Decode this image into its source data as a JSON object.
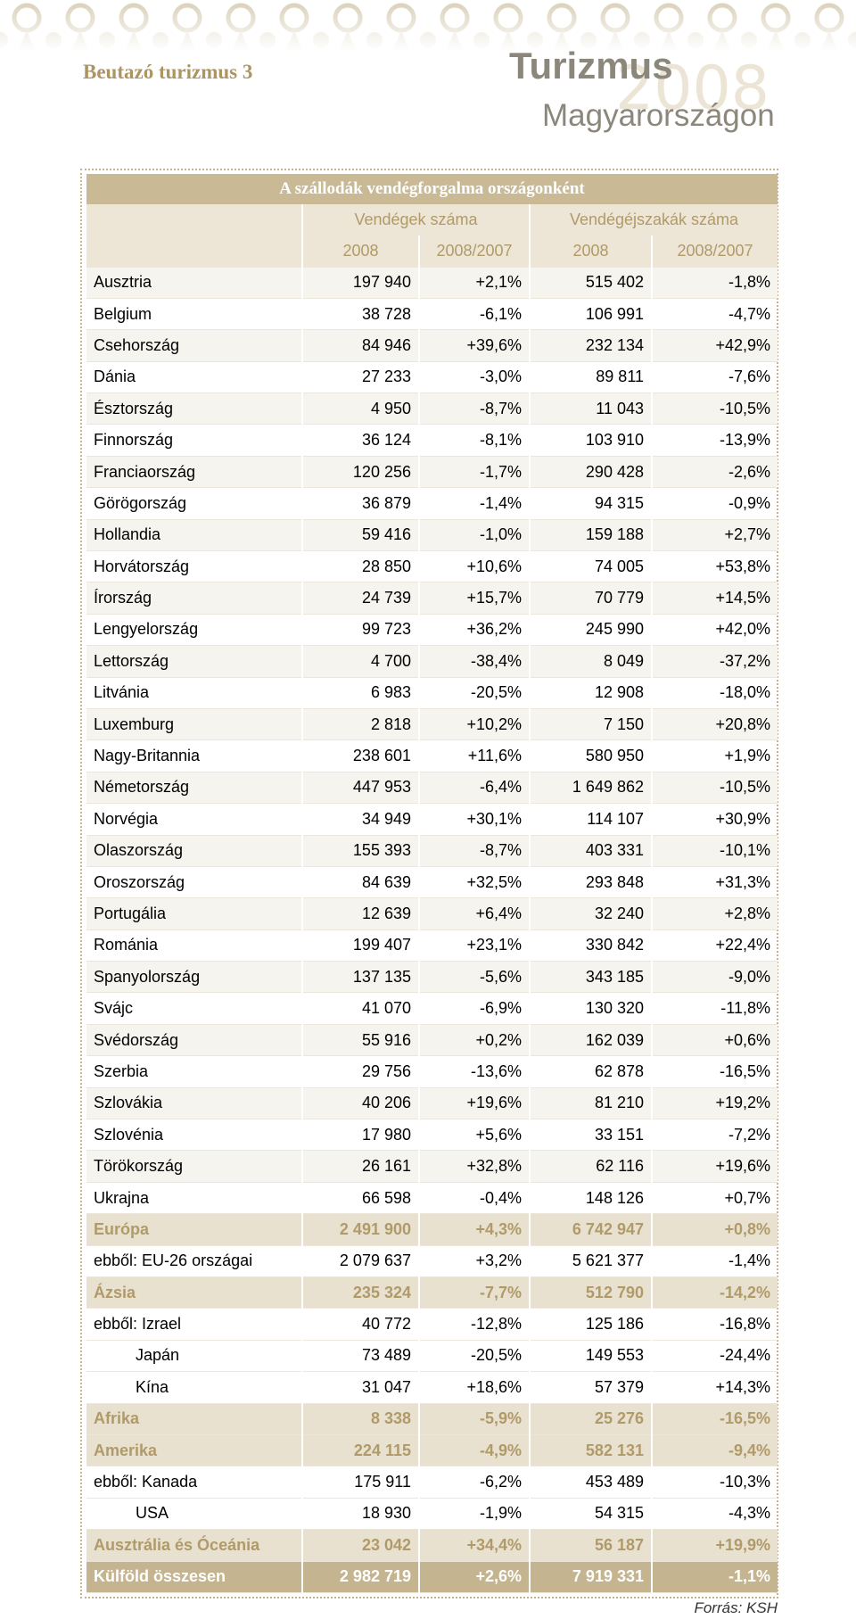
{
  "header": {
    "section": "Beutazó turizmus 3",
    "title": "Turizmus",
    "subtitle": "Magyarországon",
    "year": "2008"
  },
  "table": {
    "title": "A szállodák vendégforgalma országonként",
    "group_headers": [
      "Vendégek száma",
      "Vendégéjszakák száma"
    ],
    "year_headers": [
      "2008",
      "2008/2007",
      "2008",
      "2008/2007"
    ],
    "countries": [
      [
        "Ausztria",
        "197 940",
        "+2,1%",
        "515 402",
        "-1,8%"
      ],
      [
        "Belgium",
        "38 728",
        "-6,1%",
        "106 991",
        "-4,7%"
      ],
      [
        "Csehország",
        "84 946",
        "+39,6%",
        "232 134",
        "+42,9%"
      ],
      [
        "Dánia",
        "27 233",
        "-3,0%",
        "89 811",
        "-7,6%"
      ],
      [
        "Észtország",
        "4 950",
        "-8,7%",
        "11 043",
        "-10,5%"
      ],
      [
        "Finnország",
        "36 124",
        "-8,1%",
        "103 910",
        "-13,9%"
      ],
      [
        "Franciaország",
        "120 256",
        "-1,7%",
        "290 428",
        "-2,6%"
      ],
      [
        "Görögország",
        "36 879",
        "-1,4%",
        "94 315",
        "-0,9%"
      ],
      [
        "Hollandia",
        "59 416",
        "-1,0%",
        "159 188",
        "+2,7%"
      ],
      [
        "Horvátország",
        "28 850",
        "+10,6%",
        "74 005",
        "+53,8%"
      ],
      [
        "Írország",
        "24 739",
        "+15,7%",
        "70 779",
        "+14,5%"
      ],
      [
        "Lengyelország",
        "99 723",
        "+36,2%",
        "245 990",
        "+42,0%"
      ],
      [
        "Lettország",
        "4 700",
        "-38,4%",
        "8 049",
        "-37,2%"
      ],
      [
        "Litvánia",
        "6 983",
        "-20,5%",
        "12 908",
        "-18,0%"
      ],
      [
        "Luxemburg",
        "2 818",
        "+10,2%",
        "7 150",
        "+20,8%"
      ],
      [
        "Nagy-Britannia",
        "238 601",
        "+11,6%",
        "580 950",
        "+1,9%"
      ],
      [
        "Németország",
        "447 953",
        "-6,4%",
        "1 649 862",
        "-10,5%"
      ],
      [
        "Norvégia",
        "34 949",
        "+30,1%",
        "114 107",
        "+30,9%"
      ],
      [
        "Olaszország",
        "155 393",
        "-8,7%",
        "403 331",
        "-10,1%"
      ],
      [
        "Oroszország",
        "84 639",
        "+32,5%",
        "293 848",
        "+31,3%"
      ],
      [
        "Portugália",
        "12 639",
        "+6,4%",
        "32 240",
        "+2,8%"
      ],
      [
        "Románia",
        "199 407",
        "+23,1%",
        "330 842",
        "+22,4%"
      ],
      [
        "Spanyolország",
        "137 135",
        "-5,6%",
        "343 185",
        "-9,0%"
      ],
      [
        "Svájc",
        "41 070",
        "-6,9%",
        "130 320",
        "-11,8%"
      ],
      [
        "Svédország",
        "55 916",
        "+0,2%",
        "162 039",
        "+0,6%"
      ],
      [
        "Szerbia",
        "29 756",
        "-13,6%",
        "62 878",
        "-16,5%"
      ],
      [
        "Szlovákia",
        "40 206",
        "+19,6%",
        "81 210",
        "+19,2%"
      ],
      [
        "Szlovénia",
        "17 980",
        "+5,6%",
        "33 151",
        "-7,2%"
      ],
      [
        "Törökország",
        "26 161",
        "+32,8%",
        "62 116",
        "+19,6%"
      ],
      [
        "Ukrajna",
        "66 598",
        "-0,4%",
        "148 126",
        "+0,7%"
      ]
    ],
    "regions": [
      {
        "total": [
          "Európa",
          "2 491 900",
          "+4,3%",
          "6 742 947",
          "+0,8%"
        ],
        "details": [
          [
            "ebből: EU-26 országai",
            "2 079 637",
            "+3,2%",
            "5 621 377",
            "-1,4%"
          ]
        ]
      },
      {
        "total": [
          "Ázsia",
          "235 324",
          "-7,7%",
          "512 790",
          "-14,2%"
        ],
        "details": [
          [
            "ebből: Izrael",
            "40 772",
            "-12,8%",
            "125 186",
            "-16,8%"
          ],
          [
            "Japán",
            "73 489",
            "-20,5%",
            "149 553",
            "-24,4%"
          ],
          [
            "Kína",
            "31 047",
            "+18,6%",
            "57 379",
            "+14,3%"
          ]
        ]
      },
      {
        "total": [
          "Afrika",
          "8 338",
          "-5,9%",
          "25 276",
          "-16,5%"
        ],
        "details": []
      },
      {
        "total": [
          "Amerika",
          "224 115",
          "-4,9%",
          "582 131",
          "-9,4%"
        ],
        "details": [
          [
            "ebből: Kanada",
            "175 911",
            "-6,2%",
            "453 489",
            "-10,3%"
          ],
          [
            "USA",
            "18 930",
            "-1,9%",
            "54 315",
            "-4,3%"
          ]
        ]
      },
      {
        "total": [
          "Ausztrália és Óceánia",
          "23 042",
          "+34,4%",
          "56 187",
          "+19,9%"
        ],
        "details": []
      }
    ],
    "grand_total": [
      "Külföld összesen",
      "2 982 719",
      "+2,6%",
      "7 919 331",
      "-1,1%"
    ]
  },
  "source": "Forrás: KSH"
}
